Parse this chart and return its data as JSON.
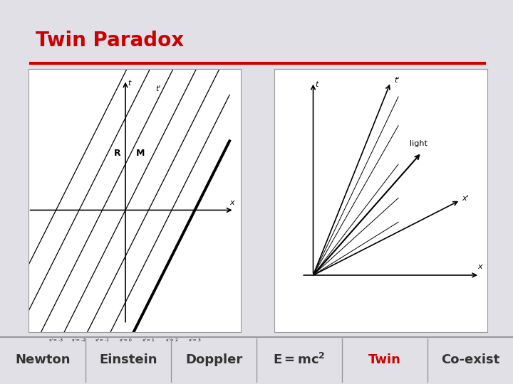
{
  "title": "Twin Paradox",
  "title_color": "#cc0000",
  "bg_color": "#e0e0e6",
  "panel_bg": "#ffffff",
  "red_line_color": "#cc0000",
  "nav_labels": [
    "Newton",
    "Einstein",
    "Doppler",
    "E=mc²",
    "Twin",
    "Co-exist"
  ],
  "nav_colors": [
    "#333333",
    "#333333",
    "#333333",
    "#333333",
    "#cc0000",
    "#333333"
  ],
  "nav_bg": "#c8c8c8",
  "nav_border": "#999999"
}
